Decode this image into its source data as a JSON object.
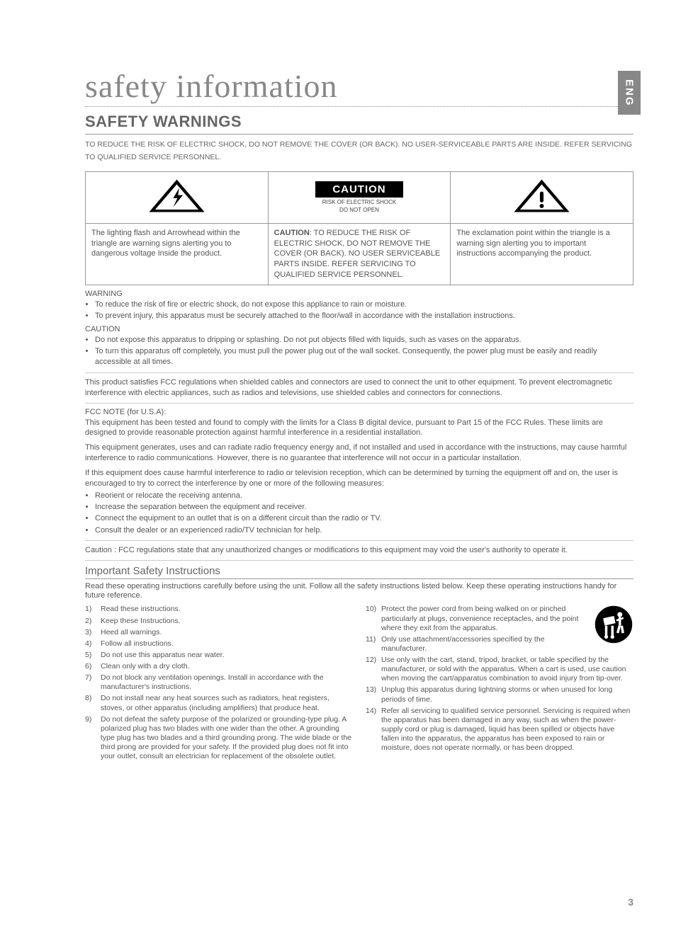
{
  "lang_tab": "ENG",
  "title_main": "safety information",
  "section_header": "SAFETY WARNINGS",
  "reduce_line": "TO REDUCE THE RISK OF ELECTRIC SHOCK, DO NOT REMOVE THE COVER (OR BACK). NO USER-SERVICEABLE PARTS ARE INSIDE. REFER SERVICING TO QUALIFIED SERVICE PERSONNEL.",
  "caution_header": "CAUTION",
  "caution_sub1": "RISK OF ELECTRIC SHOCK",
  "caution_sub2": "DO NOT OPEN",
  "cell_left": "The lighting flash and Arrowhead within the triangle are warning signs alerting you to dangerous voltage Inside the product.",
  "cell_mid_bold": "CAUTION",
  "cell_mid": ": TO REDUCE THE RISK OF ELECTRIC SHOCK, DO NOT REMOVE THE COVER (OR BACK). NO USER SERVICEABLE PARTS INSIDE. REFER SERVICING TO QUALIFIED SERVICE PERSONNEL.",
  "cell_right": "The exclamation point within the triangle is a warning sign alerting you to important instructions accompanying the product.",
  "warn_head": "WARNING",
  "warn_b1": "To reduce the risk of fire or electric shock, do not expose this appliance to rain or moisture.",
  "warn_b2": "To prevent injury, this apparatus must be securely attached to the floor/wall in accordance with the  installation instructions.",
  "caut_head": "CAUTION",
  "caut_b1": "Do not expose this apparatus to dripping or splashing. Do not put objects filled with liquids, such as vases on the apparatus.",
  "caut_b2": "To turn this apparatus off completely, you must pull the power plug out of the wall socket. Consequently, the power plug must be easily and readily accessible at all times.",
  "fcc_para": "This product satisfies FCC regulations when shielded cables and connectors are used to connect the unit to other equipment. To prevent electromagnetic interference with electric appliances, such as radios and televisions, use shielded cables and connectors for connections.",
  "fcc_note_head": "FCC NOTE (for U.S.A):",
  "fcc_p1": "This equipment has been tested and found to comply with the limits for a Class B digital device, pursuant to Part 15 of the FCC Rules. These limits are designed to provide reasonable protection against harmful interference in a residential installation.",
  "fcc_p2": "This equipment generates, uses and can radiate radio frequency energy and, if not installed and used in accordance with the instructions, may cause harmful interference to radio communications. However, there is no guarantee that interference will not occur in a particular installation.",
  "fcc_p3": "If this equipment does cause harmful interference to radio or television reception, which can be determined by turning the equipment off and on, the user is encouraged to try to correct the interference by one or more of the following measures:",
  "fcc_b1": "Reorient or relocate the receiving antenna.",
  "fcc_b2": "Increase the separation between the equipment and receiver.",
  "fcc_b3": "Connect the equipment to an outlet that is on a different circuit than the radio or TV.",
  "fcc_b4": "Consult the dealer or an experienced radio/TV technician for help.",
  "fcc_caution": "Caution : FCC regulations state that any unauthorized changes or modifications to this equipment may void the user's authority to operate it.",
  "imp_safety_head": "Important Safety Instructions",
  "imp_intro": "Read these operating instructions carefully before using the unit. Follow all the safety instructions listed below. Keep these operating instructions handy for future reference.",
  "left_items": [
    {
      "n": "1)",
      "t": "Read these instructions."
    },
    {
      "n": "2)",
      "t": "Keep these Instructions."
    },
    {
      "n": "3)",
      "t": "Heed all warnings."
    },
    {
      "n": "4)",
      "t": "Follow all instructions."
    },
    {
      "n": "5)",
      "t": "Do not use this apparatus near water."
    },
    {
      "n": "6)",
      "t": "Clean only with a dry cloth."
    },
    {
      "n": "7)",
      "t": "Do not block any ventilation openings. Install in accordance with the manufacturer's instructions."
    },
    {
      "n": "8)",
      "t": "Do not install near any heat sources such as radiators, heat registers, stoves, or other apparatus (including amplifiers) that produce heat."
    },
    {
      "n": "9)",
      "t": "Do not defeat the safety purpose of the polarized or grounding-type plug. A polarized plug has two blades with one wider than the other. A grounding type plug has two blades and a third grounding prong. The wide blade or the third prong are provided for your safety. If the provided plug does not fit into your outlet, consult an electrician for replacement of the obsolete outlet."
    }
  ],
  "right_items": [
    {
      "n": "10)",
      "t": "Protect the power cord from being walked on or pinched particularly at plugs, convenience receptacles, and the point where they exit from the apparatus."
    },
    {
      "n": "11)",
      "t": "Only use attachment/accessories specified by the manufacturer."
    },
    {
      "n": "12)",
      "t": "Use only with the cart, stand, tripod, bracket, or table specified by the manufacturer, or sold with the apparatus. When a cart is used, use caution when moving the cart/apparatus combination to avoid injury from tip-over."
    },
    {
      "n": "13)",
      "t": "Unplug this apparatus during lightning storms or when unused for long periods of time."
    },
    {
      "n": "14)",
      "t": "Refer all servicing to qualified service personnel. Servicing is required when the apparatus has been damaged in any way, such as when the power-supply cord or plug is damaged, liquid has been spilled or objects have fallen into the apparatus, the apparatus has been exposed to rain or moisture, does not operate  normally, or has been dropped."
    }
  ],
  "page_number": "3",
  "colors": {
    "tab_bg": "#888888",
    "tab_fg": "#ffffff",
    "text": "#555555",
    "heading": "#666666",
    "border": "#999999"
  }
}
